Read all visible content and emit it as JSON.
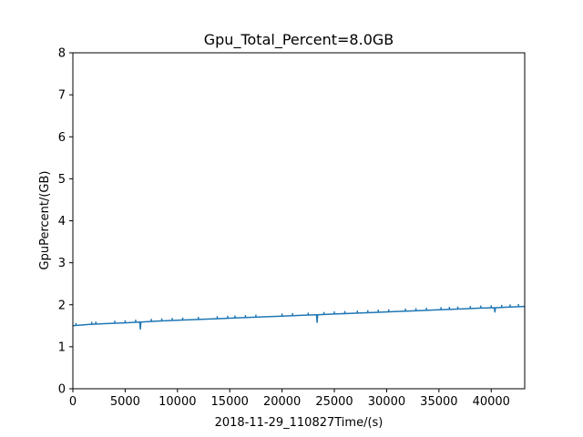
{
  "chart_data": {
    "type": "line",
    "title": "Gpu_Total_Percent=8.0GB",
    "xlabel": "2018-11-29_110827Time/(s)",
    "ylabel": "GpuPercent/(GB)",
    "xlim": [
      0,
      43200
    ],
    "ylim": [
      0,
      8
    ],
    "x_ticks": [
      0,
      5000,
      10000,
      15000,
      20000,
      25000,
      30000,
      35000,
      40000
    ],
    "y_ticks": [
      0,
      1,
      2,
      3,
      4,
      5,
      6,
      7,
      8
    ],
    "grid": false,
    "colors": {
      "line": "#1f77b4"
    },
    "series": [
      {
        "x": [
          0,
          1500,
          3000,
          5000,
          6400,
          6450,
          6500,
          8000,
          10000,
          12000,
          14000,
          16000,
          18000,
          20000,
          22000,
          23300,
          23350,
          23400,
          25000,
          27000,
          29000,
          31000,
          33000,
          35000,
          37000,
          39000,
          40300,
          40350,
          40400,
          42000,
          43200
        ],
        "y": [
          1.5,
          1.53,
          1.55,
          1.57,
          1.59,
          1.42,
          1.59,
          1.61,
          1.63,
          1.65,
          1.67,
          1.69,
          1.71,
          1.73,
          1.75,
          1.76,
          1.58,
          1.76,
          1.78,
          1.8,
          1.82,
          1.84,
          1.86,
          1.88,
          1.9,
          1.92,
          1.93,
          1.83,
          1.93,
          1.95,
          1.96
        ]
      }
    ],
    "spike_markers": {
      "x": [
        300,
        1800,
        2200,
        4000,
        5000,
        6000,
        7500,
        8500,
        9500,
        10500,
        12000,
        13800,
        14800,
        15500,
        16500,
        17500,
        20000,
        21000,
        22500,
        24000,
        25000,
        26000,
        27200,
        28200,
        29200,
        30200,
        31800,
        32800,
        33800,
        35200,
        36000,
        36800,
        38000,
        39000,
        40000,
        41000,
        41800,
        42600
      ],
      "height": 0.06
    }
  }
}
